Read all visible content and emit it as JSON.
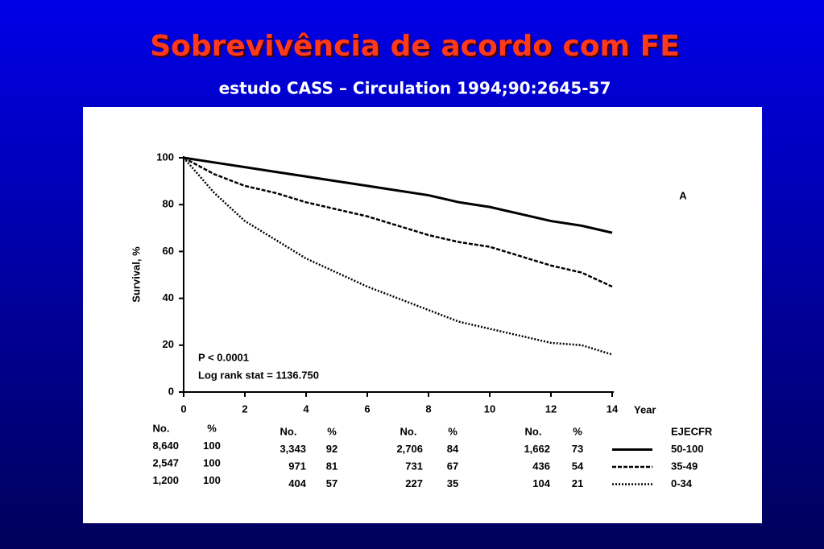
{
  "chart_data": {
    "type": "line",
    "title": "Sobrevivência de acordo com FE",
    "subtitle": "estudo  CASS – Circulation 1994;90:2645-57",
    "panel_label": "A",
    "x_label": "Year",
    "y_label": "Survival, %",
    "annotations": [
      "P < 0.0001",
      "Log rank stat = 1136.750"
    ],
    "x": [
      0,
      1,
      2,
      3,
      4,
      5,
      6,
      7,
      8,
      9,
      10,
      11,
      12,
      13,
      14
    ],
    "series": [
      {
        "name": "50-100",
        "color": "#000000",
        "line_style": "solid",
        "values": [
          100,
          98,
          96,
          94,
          92,
          90,
          88,
          86,
          84,
          81,
          79,
          76,
          73,
          71,
          68
        ]
      },
      {
        "name": "35-49",
        "color": "#000000",
        "line_style": "dashed",
        "values": [
          100,
          93,
          88,
          85,
          81,
          78,
          75,
          71,
          67,
          64,
          62,
          58,
          54,
          51,
          45
        ]
      },
      {
        "name": "0-34",
        "color": "#000000",
        "line_style": "dotted",
        "values": [
          100,
          85,
          73,
          65,
          57,
          51,
          45,
          40,
          35,
          30,
          27,
          24,
          21,
          20,
          16
        ]
      }
    ],
    "xlim": [
      0,
      14
    ],
    "xticks": [
      0,
      2,
      4,
      6,
      8,
      10,
      12,
      14
    ],
    "ylim": [
      0,
      100
    ],
    "yticks": [
      0,
      20,
      40,
      60,
      80,
      100
    ],
    "risk_table": {
      "legend_header": "EJECFR",
      "groups": [
        {
          "headers": [
            "No.",
            "%"
          ],
          "rows": [
            [
              "8,640",
              "100"
            ],
            [
              "2,547",
              "100"
            ],
            [
              "1,200",
              "100"
            ]
          ]
        },
        {
          "headers": [
            "No.",
            "%"
          ],
          "rows": [
            [
              "3,343",
              "92"
            ],
            [
              "971",
              "81"
            ],
            [
              "404",
              "57"
            ]
          ]
        },
        {
          "headers": [
            "No.",
            "%"
          ],
          "rows": [
            [
              "2,706",
              "84"
            ],
            [
              "731",
              "67"
            ],
            [
              "227",
              "35"
            ]
          ]
        },
        {
          "headers": [
            "No.",
            "%"
          ],
          "rows": [
            [
              "1,662",
              "73"
            ],
            [
              "436",
              "54"
            ],
            [
              "104",
              "21"
            ]
          ]
        }
      ]
    }
  }
}
